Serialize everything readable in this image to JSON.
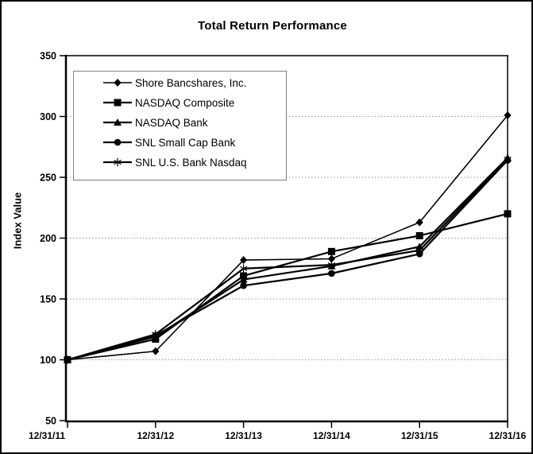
{
  "chart_data": {
    "type": "line",
    "title": "Total Return Performance",
    "ylabel": "Index Value",
    "xlabel": "",
    "ylim": [
      50,
      350
    ],
    "yticks": [
      50,
      100,
      150,
      200,
      250,
      300,
      350
    ],
    "grid": true,
    "legend_position": "upper-left",
    "categories": [
      "12/31/11",
      "12/31/12",
      "12/31/13",
      "12/31/14",
      "12/31/15",
      "12/31/16"
    ],
    "series": [
      {
        "name": "Shore Bancshares, Inc.",
        "marker": "diamond",
        "values": [
          100,
          107,
          182,
          183,
          213,
          301
        ]
      },
      {
        "name": "NASDAQ Composite",
        "marker": "square",
        "values": [
          100,
          117,
          169,
          189,
          202,
          220
        ]
      },
      {
        "name": "NASDAQ Bank",
        "marker": "triangle",
        "values": [
          100,
          119,
          166,
          177,
          193,
          266
        ]
      },
      {
        "name": "SNL Small Cap Bank",
        "marker": "circle",
        "values": [
          100,
          120,
          161,
          171,
          187,
          264
        ]
      },
      {
        "name": "SNL U.S. Bank Nasdaq",
        "marker": "star",
        "values": [
          100,
          121,
          175,
          178,
          190,
          265
        ]
      }
    ]
  },
  "colors": {
    "series": "#000000",
    "grid": "#9a9a9a",
    "frame": "#000000",
    "legend_border": "#7f7f7f",
    "background": "#ffffff"
  }
}
